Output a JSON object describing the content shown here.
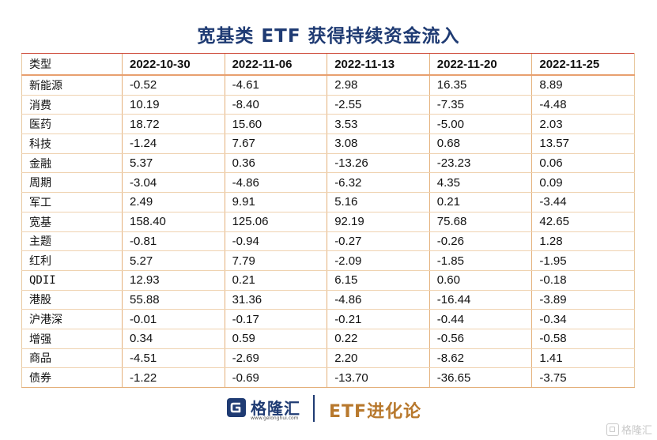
{
  "title": "宽基类 ETF 获得持续资金流入",
  "table": {
    "headers": [
      "类型",
      "2022-10-30",
      "2022-11-06",
      "2022-11-13",
      "2022-11-20",
      "2022-11-25"
    ],
    "rows": [
      [
        "新能源",
        "-0.52",
        "-4.61",
        "2.98",
        "16.35",
        "8.89"
      ],
      [
        "消费",
        "10.19",
        "-8.40",
        "-2.55",
        "-7.35",
        "-4.48"
      ],
      [
        "医药",
        "18.72",
        "15.60",
        "3.53",
        "-5.00",
        "2.03"
      ],
      [
        "科技",
        "-1.24",
        "7.67",
        "3.08",
        "0.68",
        "13.57"
      ],
      [
        "金融",
        "5.37",
        "0.36",
        "-13.26",
        "-23.23",
        "0.06"
      ],
      [
        "周期",
        "-3.04",
        "-4.86",
        "-6.32",
        "4.35",
        "0.09"
      ],
      [
        "军工",
        "2.49",
        "9.91",
        "5.16",
        "0.21",
        "-3.44"
      ],
      [
        "宽基",
        "158.40",
        "125.06",
        "92.19",
        "75.68",
        "42.65"
      ],
      [
        "主题",
        "-0.81",
        "-0.94",
        "-0.27",
        "-0.26",
        "1.28"
      ],
      [
        "红利",
        "5.27",
        "7.79",
        "-2.09",
        "-1.85",
        "-1.95"
      ],
      [
        "QDII",
        "12.93",
        "0.21",
        "6.15",
        "0.60",
        "-0.18"
      ],
      [
        "港股",
        "55.88",
        "31.36",
        "-4.86",
        "-16.44",
        "-3.89"
      ],
      [
        "沪港深",
        "-0.01",
        "-0.17",
        "-0.21",
        "-0.44",
        "-0.34"
      ],
      [
        "增强",
        "0.34",
        "0.59",
        "0.22",
        "-0.56",
        "-0.58"
      ],
      [
        "商品",
        "-4.51",
        "-2.69",
        "2.20",
        "-8.62",
        "1.41"
      ],
      [
        "债券",
        "-1.22",
        "-0.69",
        "-13.70",
        "-36.65",
        "-3.75"
      ]
    ]
  },
  "footer": {
    "logo_icon": "g-logo-icon",
    "logo_name": "格隆汇",
    "logo_url": "www.gelonghui.com",
    "brand": "ETF进化论"
  },
  "watermark": {
    "icon": "g-logo-icon",
    "text": "格隆汇"
  },
  "colors": {
    "title": "#1f3b73",
    "brand": "#b8792e",
    "header_border_top": "#cc4433",
    "header_border_bottom": "#e8a06f"
  }
}
